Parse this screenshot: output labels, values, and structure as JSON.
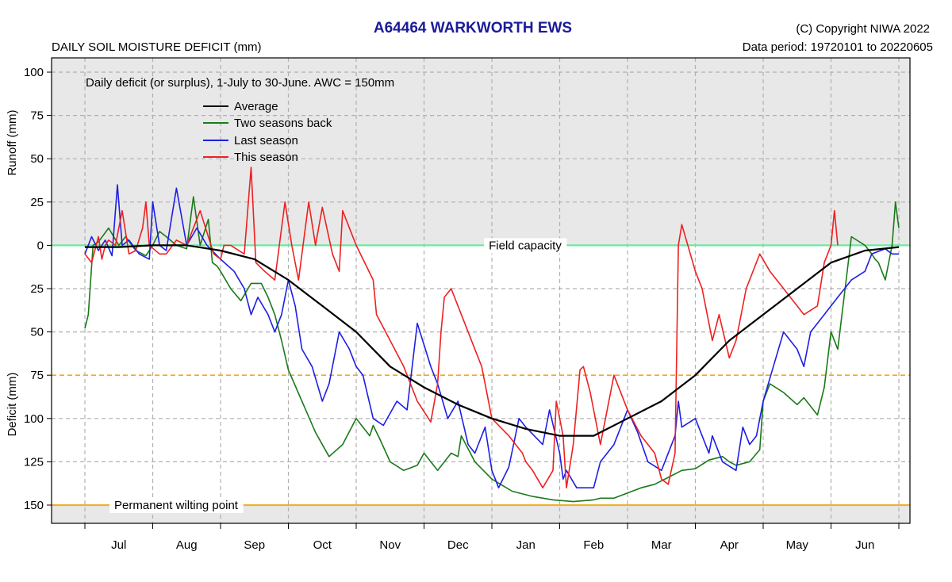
{
  "header": {
    "title": "A64464  WARKWORTH EWS",
    "subtitle": "DAILY SOIL MOISTURE DEFICIT (mm)",
    "copyright": "(C) Copyright NIWA  2022",
    "data_period": "Data period:  19720101  to  20220605"
  },
  "colors": {
    "average": "#000000",
    "two_seasons_back": "#1a7a1a",
    "last_season": "#1e1ee6",
    "this_season": "#ee2020",
    "field_capacity": "#6ee8a0",
    "wilting_point": "#f0b030",
    "awc_line": "#f5a623",
    "surplus_zone": "#e8e8e8"
  },
  "chart_data": {
    "type": "line",
    "title": "A64464  WARKWORTH EWS",
    "subtitle": "DAILY SOIL MOISTURE DEFICIT (mm)",
    "note": "Daily deficit (or surplus), 1-July to 30-June.  AWC = 150mm",
    "ylabel_top": "Runoff (mm)",
    "ylabel_bottom": "Deficit (mm)",
    "xlim": [
      0,
      12
    ],
    "ylim": [
      -110,
      160
    ],
    "x_ticks": [
      0,
      1,
      2,
      3,
      4,
      5,
      6,
      7,
      8,
      9,
      10,
      11,
      12
    ],
    "months": [
      "Jul",
      "Aug",
      "Sep",
      "Oct",
      "Nov",
      "Dec",
      "Jan",
      "Feb",
      "Mar",
      "Apr",
      "May",
      "Jun"
    ],
    "y_ticks": [
      -100,
      -75,
      -50,
      -25,
      0,
      25,
      50,
      75,
      100,
      125,
      150
    ],
    "y_tick_labels": [
      "100",
      "75",
      "50",
      "25",
      "0",
      "25",
      "50",
      "75",
      "100",
      "125",
      "150"
    ],
    "field_capacity": {
      "value": 0,
      "label": "Field capacity"
    },
    "wilting_point": {
      "value": 150,
      "label": "Permanent wilting point"
    },
    "awc_half_line": 75,
    "series": [
      {
        "name": "Average",
        "key": "average",
        "x": [
          0,
          0.5,
          1,
          1.5,
          2,
          2.5,
          3,
          3.5,
          4,
          4.5,
          5,
          5.5,
          6,
          6.5,
          7,
          7.5,
          8,
          8.5,
          9,
          9.5,
          10,
          10.5,
          11,
          11.5,
          12
        ],
        "y": [
          1,
          1,
          0,
          0,
          3,
          8,
          20,
          35,
          50,
          70,
          82,
          92,
          100,
          106,
          110,
          110,
          100,
          90,
          75,
          55,
          40,
          25,
          10,
          3,
          1
        ]
      },
      {
        "name": "Two seasons back",
        "key": "two_seasons_back",
        "x": [
          0,
          0.05,
          0.12,
          0.2,
          0.35,
          0.5,
          0.6,
          0.75,
          0.9,
          1.0,
          1.1,
          1.2,
          1.35,
          1.5,
          1.6,
          1.7,
          1.82,
          1.88,
          1.95,
          2.0,
          2.15,
          2.3,
          2.45,
          2.6,
          2.7,
          2.8,
          2.9,
          3.0,
          3.2,
          3.4,
          3.6,
          3.8,
          4.0,
          4.1,
          4.2,
          4.25,
          4.35,
          4.5,
          4.7,
          4.9,
          5.0,
          5.2,
          5.4,
          5.5,
          5.55,
          5.75,
          6.0,
          6.3,
          6.6,
          6.9,
          7.2,
          7.5,
          7.6,
          7.8,
          8.0,
          8.2,
          8.4,
          8.6,
          8.8,
          9.0,
          9.2,
          9.4,
          9.5,
          9.6,
          9.8,
          9.95,
          10.0,
          10.1,
          10.3,
          10.5,
          10.6,
          10.8,
          10.9,
          11.0,
          11.1,
          11.3,
          11.5,
          11.6,
          11.65,
          11.7,
          11.8,
          11.9,
          11.95,
          12.0
        ],
        "y": [
          48,
          40,
          0,
          -2,
          -10,
          0,
          -5,
          3,
          6,
          0,
          -8,
          -5,
          0,
          2,
          -28,
          0,
          -15,
          10,
          12,
          15,
          25,
          32,
          22,
          22,
          30,
          40,
          55,
          72,
          90,
          108,
          122,
          115,
          100,
          105,
          110,
          104,
          112,
          125,
          130,
          127,
          120,
          130,
          120,
          122,
          110,
          125,
          135,
          142,
          145,
          147,
          148,
          147,
          146,
          146,
          143,
          140,
          138,
          134,
          130,
          129,
          124,
          122,
          125,
          127,
          125,
          118,
          90,
          80,
          85,
          92,
          88,
          98,
          82,
          50,
          60,
          -5,
          0,
          5,
          8,
          10,
          20,
          0,
          -25,
          -10
        ]
      },
      {
        "name": "Last season",
        "key": "last_season",
        "x": [
          0,
          0.1,
          0.2,
          0.3,
          0.4,
          0.48,
          0.55,
          0.65,
          0.8,
          0.95,
          1.0,
          1.1,
          1.2,
          1.35,
          1.5,
          1.65,
          1.8,
          2.0,
          2.2,
          2.35,
          2.45,
          2.55,
          2.7,
          2.8,
          2.9,
          3.0,
          3.1,
          3.2,
          3.35,
          3.5,
          3.6,
          3.75,
          3.9,
          4.0,
          4.1,
          4.25,
          4.4,
          4.6,
          4.75,
          4.9,
          5.1,
          5.2,
          5.35,
          5.5,
          5.65,
          5.75,
          5.9,
          6.0,
          6.05,
          6.1,
          6.25,
          6.4,
          6.5,
          6.75,
          6.85,
          7.0,
          7.05,
          7.1,
          7.25,
          7.5,
          7.6,
          7.8,
          8.0,
          8.15,
          8.3,
          8.5,
          8.7,
          8.75,
          8.8,
          9.0,
          9.2,
          9.25,
          9.4,
          9.6,
          9.7,
          9.8,
          9.9,
          10.0,
          10.15,
          10.3,
          10.4,
          10.5,
          10.6,
          10.7,
          10.8,
          10.9,
          11.0,
          11.1,
          11.2,
          11.3,
          11.5,
          11.6,
          11.8,
          11.9,
          12.0
        ],
        "y": [
          5,
          -5,
          3,
          -3,
          6,
          -35,
          0,
          -3,
          5,
          8,
          -25,
          0,
          3,
          -33,
          0,
          -10,
          0,
          8,
          15,
          25,
          40,
          30,
          40,
          50,
          40,
          20,
          35,
          60,
          70,
          90,
          80,
          50,
          60,
          70,
          75,
          100,
          104,
          90,
          95,
          45,
          70,
          80,
          100,
          90,
          115,
          120,
          105,
          130,
          135,
          140,
          128,
          100,
          105,
          115,
          95,
          120,
          135,
          130,
          140,
          140,
          125,
          115,
          95,
          108,
          125,
          130,
          110,
          90,
          105,
          100,
          120,
          110,
          125,
          130,
          105,
          115,
          110,
          90,
          70,
          50,
          55,
          60,
          70,
          50,
          45,
          40,
          35,
          30,
          25,
          20,
          15,
          5,
          2,
          5,
          5
        ]
      },
      {
        "name": "This season",
        "key": "this_season",
        "x": [
          0,
          0.1,
          0.2,
          0.25,
          0.3,
          0.35,
          0.45,
          0.55,
          0.65,
          0.75,
          0.85,
          0.9,
          0.95,
          1.1,
          1.2,
          1.35,
          1.5,
          1.7,
          1.9,
          2.0,
          2.05,
          2.15,
          2.35,
          2.45,
          2.52,
          2.65,
          2.8,
          2.95,
          3.05,
          3.15,
          3.3,
          3.4,
          3.5,
          3.65,
          3.75,
          3.8,
          4.0,
          4.25,
          4.3,
          4.5,
          4.7,
          4.9,
          5.1,
          5.2,
          5.25,
          5.3,
          5.4,
          5.6,
          5.75,
          5.85,
          6.0,
          6.25,
          6.45,
          6.5,
          6.6,
          6.75,
          6.9,
          6.95,
          7.05,
          7.1,
          7.2,
          7.3,
          7.35,
          7.45,
          7.6,
          7.8,
          8.0,
          8.2,
          8.4,
          8.5,
          8.6,
          8.7,
          8.75,
          8.8,
          9.0,
          9.1,
          9.25,
          9.35,
          9.5,
          9.6,
          9.65,
          9.75,
          9.95,
          10.1,
          10.3,
          10.5,
          10.6,
          10.8,
          10.9,
          11.0,
          11.05,
          11.1
        ],
        "y": [
          5,
          10,
          -5,
          8,
          0,
          -3,
          0,
          -20,
          5,
          3,
          -10,
          -25,
          0,
          5,
          5,
          -3,
          0,
          -20,
          5,
          8,
          0,
          0,
          5,
          -45,
          10,
          15,
          20,
          -25,
          0,
          20,
          -25,
          0,
          -22,
          5,
          15,
          -20,
          0,
          20,
          40,
          55,
          70,
          90,
          102,
          80,
          50,
          30,
          25,
          45,
          60,
          70,
          100,
          110,
          120,
          125,
          130,
          140,
          130,
          90,
          110,
          140,
          115,
          72,
          70,
          85,
          115,
          75,
          95,
          110,
          120,
          135,
          138,
          120,
          0,
          -12,
          15,
          25,
          55,
          40,
          65,
          55,
          45,
          25,
          5,
          15,
          25,
          35,
          40,
          35,
          10,
          0,
          -20,
          0
        ]
      }
    ]
  }
}
